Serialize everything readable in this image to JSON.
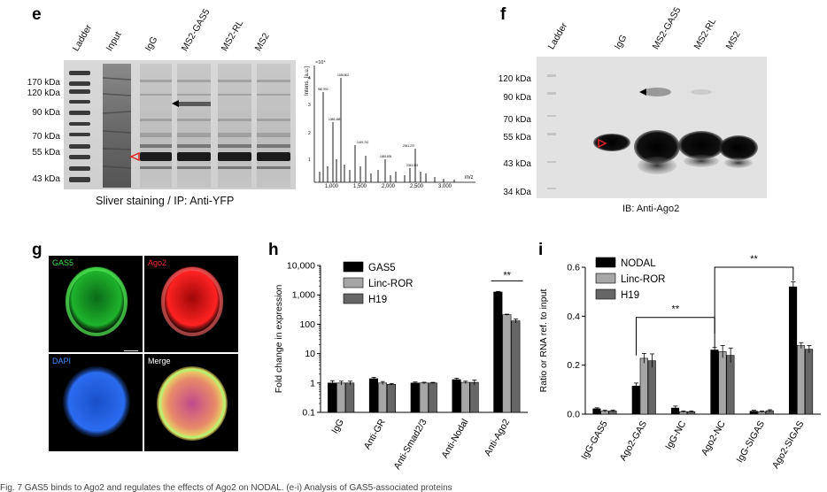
{
  "panels": {
    "e": {
      "label": "e",
      "lanes": [
        "Ladder",
        "Input",
        "IgG",
        "MS2-GAS5",
        "MS2-RL",
        "MS2"
      ],
      "mw_markers": [
        "170 kDa",
        "120 kDa",
        "90 kDa",
        "70 kDa",
        "55 kDa",
        "43 kDa"
      ],
      "caption": "Sliver staining / IP: Anti-YFP",
      "ms": {
        "ylabel": "Intens. [a.u.]",
        "yexp": "×10⁴",
        "xlabel": "m/z",
        "xticks": [
          "1,000",
          "1,500",
          "2,000",
          "2,500",
          "3,000"
        ],
        "yticks": [
          "1",
          "2",
          "3",
          "4"
        ]
      }
    },
    "f": {
      "label": "f",
      "lanes": [
        "Ladder",
        "IgG",
        "MS2-GAS5",
        "MS2-RL",
        "MS2"
      ],
      "mw_markers": [
        "120 kDa",
        "90 kDa",
        "70 kDa",
        "55 kDa",
        "43 kDa",
        "34 kDa"
      ],
      "caption": "IB: Anti-Ago2"
    },
    "g": {
      "label": "g",
      "quadrants": [
        "GAS5",
        "Ago2",
        "DAPI",
        "Merge"
      ],
      "colors": {
        "GAS5": "#2fd23a",
        "Ago2": "#ff2a2a",
        "DAPI": "#2a8cff",
        "Merge": "#ffffff"
      }
    },
    "h": {
      "label": "h",
      "significance": "**"
    },
    "i": {
      "label": "i",
      "significance": [
        "**",
        "**"
      ]
    }
  },
  "chart_data": [
    {
      "type": "bar",
      "panel": "h",
      "ylabel": "Fold change in expression",
      "yscale": "log",
      "ylim": [
        0.1,
        10000
      ],
      "yticks": [
        "0.1",
        "1",
        "10",
        "100",
        "1,000",
        "10,000"
      ],
      "categories": [
        "IgG",
        "Anti-GR",
        "Anti-Smad2/3",
        "Anti-Nodal",
        "Anti-Ago2"
      ],
      "series": [
        {
          "name": "GAS5",
          "color": "#000000",
          "values": [
            1.0,
            1.4,
            1.0,
            1.3,
            1250
          ],
          "errors": [
            0.2,
            0.15,
            0.08,
            0.15,
            60
          ]
        },
        {
          "name": "Linc-ROR",
          "color": "#a6a6a6",
          "values": [
            1.0,
            1.0,
            1.0,
            1.05,
            210
          ],
          "errors": [
            0.15,
            0.12,
            0.06,
            0.1,
            10
          ]
        },
        {
          "name": "H19",
          "color": "#666666",
          "values": [
            1.0,
            0.9,
            1.0,
            1.05,
            130
          ],
          "errors": [
            0.15,
            0.06,
            0.05,
            0.2,
            20
          ]
        }
      ],
      "legend": "top-left"
    },
    {
      "type": "bar",
      "panel": "i",
      "ylabel": "Ratio or RNA ref. to input",
      "ylim": [
        0,
        0.6
      ],
      "yticks": [
        "0.0",
        "0.2",
        "0.4",
        "0.6"
      ],
      "categories": [
        "IgG-GAS5",
        "Ago2-GAS",
        "IgG-NC",
        "Ago2-NC",
        "IgG-SIGAS",
        "Ago2-SIGAS"
      ],
      "series": [
        {
          "name": "NODAL",
          "color": "#000000",
          "values": [
            0.022,
            0.115,
            0.025,
            0.262,
            0.012,
            0.52
          ],
          "errors": [
            0.004,
            0.012,
            0.008,
            0.01,
            0.004,
            0.02
          ]
        },
        {
          "name": "Linc-ROR",
          "color": "#a6a6a6",
          "values": [
            0.012,
            0.228,
            0.01,
            0.255,
            0.01,
            0.28
          ],
          "errors": [
            0.004,
            0.02,
            0.003,
            0.025,
            0.003,
            0.012
          ]
        },
        {
          "name": "H19",
          "color": "#666666",
          "values": [
            0.013,
            0.218,
            0.01,
            0.24,
            0.014,
            0.265
          ],
          "errors": [
            0.004,
            0.028,
            0.003,
            0.03,
            0.004,
            0.015
          ]
        }
      ],
      "legend": "top-left"
    }
  ],
  "footer": "Fig. 7 GAS5 binds to Ago2 and regulates the effects of Ago2 on NODAL. (e-i) Analysis of GAS5-associated proteins"
}
